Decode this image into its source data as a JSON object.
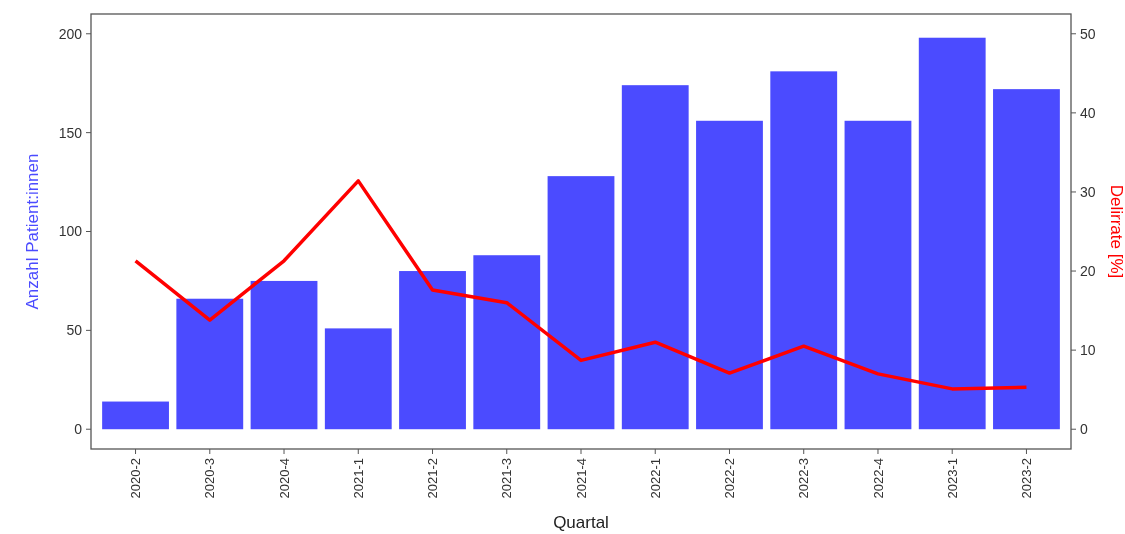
{
  "chart_data": {
    "type": "bar",
    "xlabel": "Quartal",
    "ylabel": "Anzahl Patient:innen",
    "y2label": "Delirrate [%]",
    "categories": [
      "2020-2",
      "2020-3",
      "2020-4",
      "2021-1",
      "2021-2",
      "2021-3",
      "2021-4",
      "2022-1",
      "2022-2",
      "2022-3",
      "2022-4",
      "2023-1",
      "2023-2"
    ],
    "series": [
      {
        "color": "#4b4bff",
        "values": [
          14,
          66,
          75,
          51,
          80,
          88,
          128,
          174,
          156,
          181,
          156,
          198,
          172
        ]
      },
      {
        "type": "line",
        "axis": "y2",
        "color": "#ff0000",
        "values": [
          21.3,
          13.8,
          21.3,
          31.4,
          17.6,
          16.0,
          8.7,
          11.0,
          7.1,
          10.5,
          7.0,
          5.1,
          5.3
        ]
      }
    ],
    "ylim": [
      -10,
      210
    ],
    "yticks": [
      0,
      50,
      100,
      150,
      200
    ],
    "y2lim": [
      -2.5,
      52.5
    ],
    "y2ticks": [
      0,
      10,
      20,
      30,
      40,
      50
    ],
    "grid": false
  }
}
